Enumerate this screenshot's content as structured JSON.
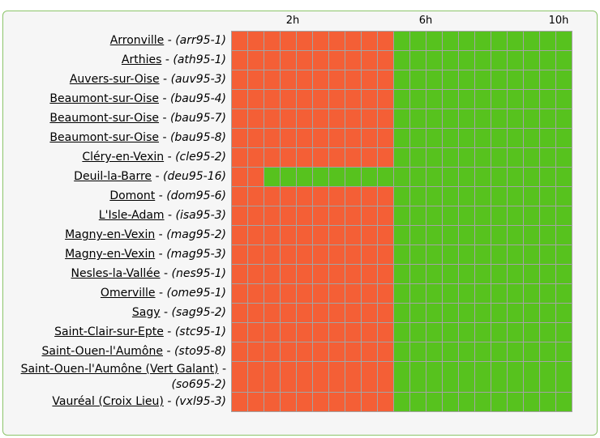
{
  "header": {
    "hours": [
      "2h",
      "6h",
      "10h"
    ]
  },
  "separator": "-",
  "colors": [
    "#f45f36",
    "#57c21e"
  ],
  "rows": [
    {
      "name": "Arronville",
      "code": "(arr95-1)",
      "cells": [
        0,
        0,
        0,
        0,
        0,
        0,
        0,
        0,
        0,
        0,
        1,
        1,
        1,
        1,
        1,
        1,
        1,
        1,
        1,
        1,
        1
      ]
    },
    {
      "name": "Arthies",
      "code": "(ath95-1)",
      "cells": [
        0,
        0,
        0,
        0,
        0,
        0,
        0,
        0,
        0,
        0,
        1,
        1,
        1,
        1,
        1,
        1,
        1,
        1,
        1,
        1,
        1
      ]
    },
    {
      "name": "Auvers-sur-Oise",
      "code": "(auv95-3)",
      "cells": [
        0,
        0,
        0,
        0,
        0,
        0,
        0,
        0,
        0,
        0,
        1,
        1,
        1,
        1,
        1,
        1,
        1,
        1,
        1,
        1,
        1
      ]
    },
    {
      "name": "Beaumont-sur-Oise",
      "code": "(bau95-4)",
      "cells": [
        0,
        0,
        0,
        0,
        0,
        0,
        0,
        0,
        0,
        0,
        1,
        1,
        1,
        1,
        1,
        1,
        1,
        1,
        1,
        1,
        1
      ]
    },
    {
      "name": "Beaumont-sur-Oise",
      "code": "(bau95-7)",
      "cells": [
        0,
        0,
        0,
        0,
        0,
        0,
        0,
        0,
        0,
        0,
        1,
        1,
        1,
        1,
        1,
        1,
        1,
        1,
        1,
        1,
        1
      ]
    },
    {
      "name": "Beaumont-sur-Oise",
      "code": "(bau95-8)",
      "cells": [
        0,
        0,
        0,
        0,
        0,
        0,
        0,
        0,
        0,
        0,
        1,
        1,
        1,
        1,
        1,
        1,
        1,
        1,
        1,
        1,
        1
      ]
    },
    {
      "name": "Cléry-en-Vexin",
      "code": "(cle95-2)",
      "cells": [
        0,
        0,
        0,
        0,
        0,
        0,
        0,
        0,
        0,
        0,
        1,
        1,
        1,
        1,
        1,
        1,
        1,
        1,
        1,
        1,
        1
      ]
    },
    {
      "name": "Deuil-la-Barre",
      "code": "(deu95-16)",
      "cells": [
        0,
        0,
        1,
        1,
        1,
        1,
        1,
        1,
        1,
        1,
        1,
        1,
        1,
        1,
        1,
        1,
        1,
        1,
        1,
        1,
        1
      ]
    },
    {
      "name": "Domont",
      "code": "(dom95-6)",
      "cells": [
        0,
        0,
        0,
        0,
        0,
        0,
        0,
        0,
        0,
        0,
        1,
        1,
        1,
        1,
        1,
        1,
        1,
        1,
        1,
        1,
        1
      ]
    },
    {
      "name": "L'Isle-Adam",
      "code": "(isa95-3)",
      "cells": [
        0,
        0,
        0,
        0,
        0,
        0,
        0,
        0,
        0,
        0,
        1,
        1,
        1,
        1,
        1,
        1,
        1,
        1,
        1,
        1,
        1
      ]
    },
    {
      "name": "Magny-en-Vexin",
      "code": "(mag95-2)",
      "cells": [
        0,
        0,
        0,
        0,
        0,
        0,
        0,
        0,
        0,
        0,
        1,
        1,
        1,
        1,
        1,
        1,
        1,
        1,
        1,
        1,
        1
      ]
    },
    {
      "name": "Magny-en-Vexin",
      "code": "(mag95-3)",
      "cells": [
        0,
        0,
        0,
        0,
        0,
        0,
        0,
        0,
        0,
        0,
        1,
        1,
        1,
        1,
        1,
        1,
        1,
        1,
        1,
        1,
        1
      ]
    },
    {
      "name": "Nesles-la-Vallée",
      "code": "(nes95-1)",
      "cells": [
        0,
        0,
        0,
        0,
        0,
        0,
        0,
        0,
        0,
        0,
        1,
        1,
        1,
        1,
        1,
        1,
        1,
        1,
        1,
        1,
        1
      ]
    },
    {
      "name": "Omerville",
      "code": "(ome95-1)",
      "cells": [
        0,
        0,
        0,
        0,
        0,
        0,
        0,
        0,
        0,
        0,
        1,
        1,
        1,
        1,
        1,
        1,
        1,
        1,
        1,
        1,
        1
      ]
    },
    {
      "name": "Sagy",
      "code": "(sag95-2)",
      "cells": [
        0,
        0,
        0,
        0,
        0,
        0,
        0,
        0,
        0,
        0,
        1,
        1,
        1,
        1,
        1,
        1,
        1,
        1,
        1,
        1,
        1
      ]
    },
    {
      "name": "Saint-Clair-sur-Epte",
      "code": "(stc95-1)",
      "cells": [
        0,
        0,
        0,
        0,
        0,
        0,
        0,
        0,
        0,
        0,
        1,
        1,
        1,
        1,
        1,
        1,
        1,
        1,
        1,
        1,
        1
      ]
    },
    {
      "name": "Saint-Ouen-l'Aumône",
      "code": "(sto95-8)",
      "cells": [
        0,
        0,
        0,
        0,
        0,
        0,
        0,
        0,
        0,
        0,
        1,
        1,
        1,
        1,
        1,
        1,
        1,
        1,
        1,
        1,
        1
      ]
    },
    {
      "name": "Saint-Ouen-l'Aumône (Vert Galant)",
      "code": "(so695-2)",
      "cells": [
        0,
        0,
        0,
        0,
        0,
        0,
        0,
        0,
        0,
        0,
        1,
        1,
        1,
        1,
        1,
        1,
        1,
        1,
        1,
        1,
        1
      ]
    },
    {
      "name": "Vauréal (Croix Lieu)",
      "code": "(vxl95-3)",
      "cells": [
        0,
        0,
        0,
        0,
        0,
        0,
        0,
        0,
        0,
        0,
        1,
        1,
        1,
        1,
        1,
        1,
        1,
        1,
        1,
        1,
        1
      ]
    }
  ]
}
